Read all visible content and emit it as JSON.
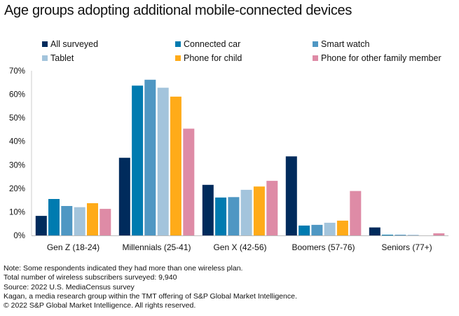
{
  "chart_data": {
    "type": "bar",
    "title": "Age groups adopting additional mobile-connected devices",
    "xlabel": "",
    "ylabel": "",
    "ylim": [
      0,
      70
    ],
    "yticks": [
      0,
      10,
      20,
      30,
      40,
      50,
      60,
      70
    ],
    "ytick_labels": [
      "0%",
      "10%",
      "20%",
      "30%",
      "40%",
      "50%",
      "60%",
      "70%"
    ],
    "grid": false,
    "legend_position": "top",
    "categories": [
      "Gen Z (18-24)",
      "Millennials (25-41)",
      "Gen X (42-56)",
      "Boomers (57-76)",
      "Seniors (77+)"
    ],
    "series": [
      {
        "name": "All surveyed",
        "color": "#002B5C",
        "values": [
          8.3,
          33.0,
          21.5,
          33.6,
          3.4
        ]
      },
      {
        "name": "Connected car",
        "color": "#007BB0",
        "values": [
          15.5,
          63.7,
          16.1,
          4.2,
          0.3
        ]
      },
      {
        "name": "Smart watch",
        "color": "#4F97C3",
        "values": [
          12.5,
          66.2,
          16.3,
          4.5,
          0.3
        ]
      },
      {
        "name": "Tablet",
        "color": "#A3C4DC",
        "values": [
          12.0,
          62.8,
          19.4,
          5.4,
          0.3
        ]
      },
      {
        "name": "Phone for child",
        "color": "#FFAB19",
        "values": [
          13.7,
          59.0,
          20.8,
          6.3,
          0.0
        ]
      },
      {
        "name": "Phone for other family member",
        "color": "#DE8BA6",
        "values": [
          11.3,
          45.4,
          23.2,
          18.9,
          0.9
        ]
      }
    ]
  },
  "notes": [
    "Note: Some respondents indicated they had more than one wireless plan.",
    "Total number of wireless subscribers surveyed: 9,940",
    "Source: 2022 U.S. MediaCensus survey",
    "Kagan, a media research group within the TMT offering of S&P Global Market Intelligence.",
    "© 2022 S&P Global Market Intelligence. All rights reserved."
  ]
}
